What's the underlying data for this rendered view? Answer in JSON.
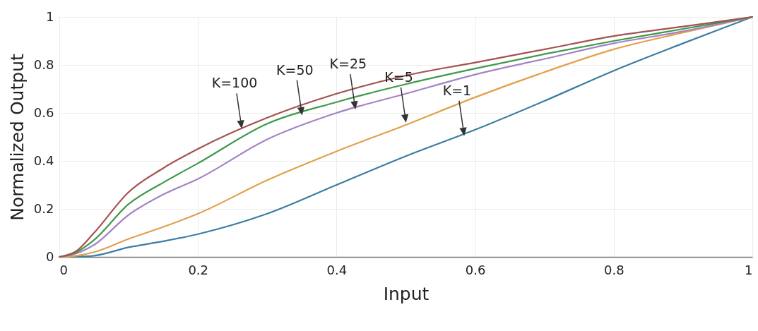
{
  "chart_data": {
    "type": "line",
    "xlabel": "Input",
    "ylabel": "Normalized Output",
    "x": [
      0,
      0.025,
      0.05,
      0.1,
      0.15,
      0.2,
      0.3,
      0.4,
      0.5,
      0.6,
      0.7,
      0.8,
      0.9,
      1
    ],
    "series": [
      {
        "color": "#3b7ea1",
        "values": [
          0,
          0.001,
          0.005,
          0.04,
          0.065,
          0.095,
          0.18,
          0.3,
          0.42,
          0.53,
          0.65,
          0.776,
          0.89,
          1
        ]
      },
      {
        "color": "#e3a04a",
        "values": [
          0,
          0.005,
          0.02,
          0.075,
          0.125,
          0.18,
          0.32,
          0.44,
          0.55,
          0.665,
          0.77,
          0.865,
          0.935,
          1
        ]
      },
      {
        "color": "#a583c6",
        "values": [
          0,
          0.015,
          0.05,
          0.175,
          0.26,
          0.325,
          0.49,
          0.6,
          0.68,
          0.76,
          0.825,
          0.89,
          0.94,
          1
        ]
      },
      {
        "color": "#3e9a4a",
        "values": [
          0,
          0.02,
          0.07,
          0.22,
          0.31,
          0.39,
          0.555,
          0.645,
          0.72,
          0.785,
          0.845,
          0.9,
          0.95,
          1
        ]
      },
      {
        "color": "#a4524f",
        "values": [
          0,
          0.025,
          0.1,
          0.27,
          0.37,
          0.45,
          0.58,
          0.68,
          0.756,
          0.81,
          0.865,
          0.92,
          0.96,
          1
        ]
      }
    ],
    "xlim": [
      0,
      1
    ],
    "ylim": [
      0,
      1
    ],
    "xticks": [
      0,
      0.2,
      0.4,
      0.6,
      0.8,
      1
    ],
    "yticks": [
      0,
      0.2,
      0.4,
      0.6,
      0.8,
      1
    ],
    "grid": true,
    "annotations": [
      {
        "text": "K=100",
        "x": 0.263,
        "y": 0.54
      },
      {
        "text": "K=50",
        "x": 0.35,
        "y": 0.595
      },
      {
        "text": "K=25",
        "x": 0.427,
        "y": 0.62
      },
      {
        "text": "K=5",
        "x": 0.5,
        "y": 0.565
      },
      {
        "text": "K=1",
        "x": 0.584,
        "y": 0.51
      }
    ]
  }
}
